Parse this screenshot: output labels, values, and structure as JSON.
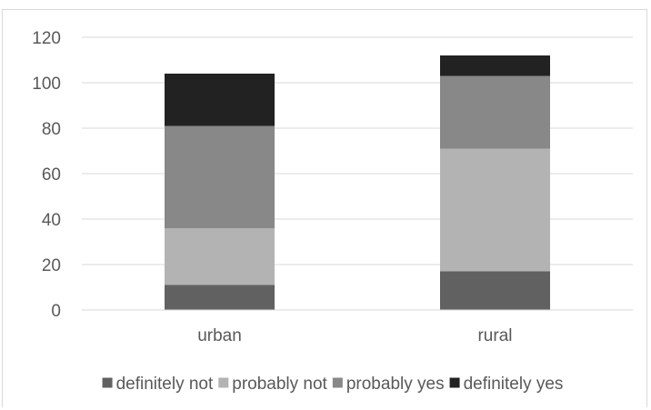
{
  "chart_data": {
    "type": "bar",
    "stacked": true,
    "categories": [
      "urban",
      "rural"
    ],
    "series": [
      {
        "name": "definitely not",
        "values": [
          11,
          17
        ],
        "color": "#616161"
      },
      {
        "name": "probably not",
        "values": [
          25,
          54
        ],
        "color": "#b3b3b3"
      },
      {
        "name": "probably yes",
        "values": [
          45,
          32
        ],
        "color": "#888888"
      },
      {
        "name": "definitely yes",
        "values": [
          23,
          9
        ],
        "color": "#222222"
      }
    ],
    "title": "",
    "xlabel": "",
    "ylabel": "",
    "ylim": [
      0,
      120
    ],
    "yticks": [
      0,
      20,
      40,
      60,
      80,
      100,
      120
    ],
    "grid": true,
    "legend_position": "bottom"
  }
}
